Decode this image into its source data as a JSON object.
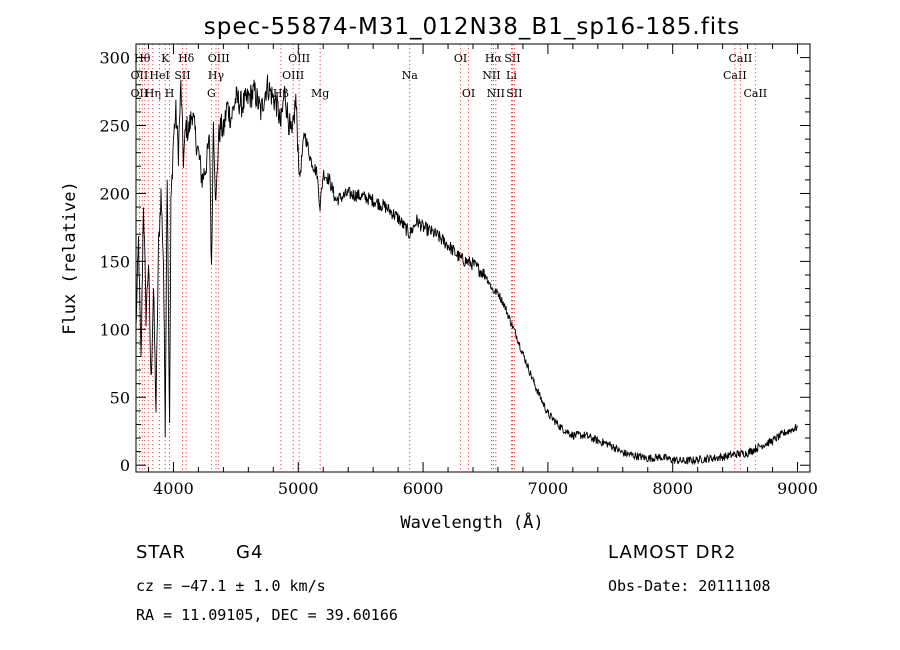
{
  "chart_data": {
    "type": "line",
    "title": "spec-55874-M31_012N38_B1_sp16-185.fits",
    "xlabel": "Wavelength (Å)",
    "ylabel": "Flux (relative)",
    "xlim": [
      3700,
      9100
    ],
    "ylim": [
      -5,
      310
    ],
    "xticks": [
      4000,
      5000,
      6000,
      7000,
      8000,
      9000
    ],
    "yticks": [
      0,
      50,
      100,
      150,
      200,
      250,
      300
    ],
    "grid": false,
    "series": [
      {
        "x": [
          3700,
          3720,
          3740,
          3760,
          3780,
          3800,
          3820,
          3840,
          3860,
          3880,
          3900,
          3920,
          3934,
          3950,
          3969,
          3980,
          4000,
          4020,
          4040,
          4060,
          4080,
          4101,
          4120,
          4150,
          4180,
          4200,
          4230,
          4260,
          4290,
          4305,
          4320,
          4340,
          4360,
          4380,
          4400,
          4430,
          4460,
          4500,
          4550,
          4600,
          4650,
          4700,
          4750,
          4800,
          4830,
          4861,
          4890,
          4920,
          4950,
          4980,
          5010,
          5050,
          5100,
          5150,
          5175,
          5200,
          5250,
          5300,
          5400,
          5500,
          5600,
          5700,
          5800,
          5893,
          5950,
          6000,
          6100,
          6200,
          6300,
          6400,
          6500,
          6563,
          6600,
          6650,
          6700,
          6750,
          6800,
          6850,
          6900,
          6950,
          7000,
          7100,
          7200,
          7300,
          7400,
          7500,
          7600,
          7700,
          7800,
          7900,
          8000,
          8100,
          8200,
          8300,
          8400,
          8500,
          8600,
          8700,
          8800,
          8900,
          9000
        ],
        "y": [
          100,
          165,
          75,
          195,
          110,
          150,
          60,
          130,
          40,
          160,
          200,
          150,
          30,
          220,
          25,
          190,
          240,
          260,
          230,
          280,
          225,
          250,
          245,
          260,
          240,
          230,
          210,
          220,
          240,
          140,
          255,
          190,
          240,
          250,
          245,
          265,
          255,
          270,
          265,
          270,
          275,
          260,
          280,
          270,
          265,
          250,
          275,
          255,
          240,
          270,
          210,
          245,
          225,
          215,
          190,
          215,
          210,
          195,
          200,
          198,
          195,
          190,
          182,
          170,
          180,
          175,
          170,
          162,
          152,
          148,
          140,
          128,
          127,
          118,
          106,
          95,
          82,
          70,
          58,
          48,
          38,
          28,
          22,
          22,
          18,
          15,
          9,
          7,
          5,
          6,
          4,
          3,
          4,
          5,
          6,
          8,
          9,
          14,
          18,
          24,
          28
        ]
      }
    ],
    "lines": [
      {
        "x": 3727,
        "labels": [
          {
            "row": 2,
            "text": "OII"
          },
          {
            "row": 3,
            "text": "OII"
          }
        ]
      },
      {
        "x": 3750,
        "labels": [
          {
            "row": 1,
            "text": "Hθ"
          }
        ]
      },
      {
        "x": 3770,
        "labels": []
      },
      {
        "x": 3798,
        "labels": []
      },
      {
        "x": 3835,
        "labels": [
          {
            "row": 3,
            "text": "Hη"
          }
        ]
      },
      {
        "x": 3889,
        "labels": [
          {
            "row": 2,
            "text": "HeI"
          }
        ]
      },
      {
        "x": 3934,
        "labels": [
          {
            "row": 1,
            "text": "K"
          }
        ]
      },
      {
        "x": 3969,
        "labels": [
          {
            "row": 3,
            "text": "H"
          }
        ]
      },
      {
        "x": 4072,
        "labels": [
          {
            "row": 2,
            "text": "SII"
          }
        ]
      },
      {
        "x": 4102,
        "labels": [
          {
            "row": 1,
            "text": "Hδ"
          }
        ]
      },
      {
        "x": 4304,
        "labels": [
          {
            "row": 3,
            "text": "G"
          }
        ]
      },
      {
        "x": 4341,
        "labels": [
          {
            "row": 2,
            "text": "Hγ"
          }
        ]
      },
      {
        "x": 4363,
        "labels": [
          {
            "row": 1,
            "text": "OIII"
          }
        ]
      },
      {
        "x": 4861,
        "labels": [
          {
            "row": 3,
            "text": "Hβ"
          }
        ]
      },
      {
        "x": 4959,
        "labels": [
          {
            "row": 2,
            "text": "OIII"
          }
        ]
      },
      {
        "x": 5007,
        "labels": [
          {
            "row": 1,
            "text": "OIII"
          }
        ]
      },
      {
        "x": 5175,
        "labels": [
          {
            "row": 3,
            "text": "Mg"
          }
        ]
      },
      {
        "x": 5893,
        "labels": [
          {
            "row": 2,
            "text": "Na"
          }
        ]
      },
      {
        "x": 6300,
        "labels": [
          {
            "row": 1,
            "text": "OI"
          }
        ]
      },
      {
        "x": 6364,
        "labels": [
          {
            "row": 3,
            "text": "OI"
          }
        ]
      },
      {
        "x": 6548,
        "labels": [
          {
            "row": 2,
            "text": "NII"
          }
        ]
      },
      {
        "x": 6563,
        "labels": [
          {
            "row": 1,
            "text": "Hα"
          }
        ]
      },
      {
        "x": 6583,
        "labels": [
          {
            "row": 3,
            "text": "NII"
          }
        ]
      },
      {
        "x": 6708,
        "labels": [
          {
            "row": 2,
            "text": "Li"
          }
        ]
      },
      {
        "x": 6716,
        "labels": [
          {
            "row": 1,
            "text": "SII"
          }
        ]
      },
      {
        "x": 6731,
        "labels": [
          {
            "row": 3,
            "text": "SII"
          }
        ]
      },
      {
        "x": 8498,
        "labels": [
          {
            "row": 2,
            "text": "CaII"
          }
        ]
      },
      {
        "x": 8542,
        "labels": [
          {
            "row": 1,
            "text": "CaII"
          }
        ]
      },
      {
        "x": 8662,
        "labels": [
          {
            "row": 3,
            "text": "CaII"
          }
        ]
      }
    ]
  },
  "info": {
    "class": "STAR",
    "subclass": "G4",
    "survey": "LAMOST DR2",
    "cz": "cz = −47.1 ± 1.0 km/s",
    "obs_date": "Obs-Date: 20111108",
    "coords": "RA =  11.09105, DEC =  39.60166"
  }
}
